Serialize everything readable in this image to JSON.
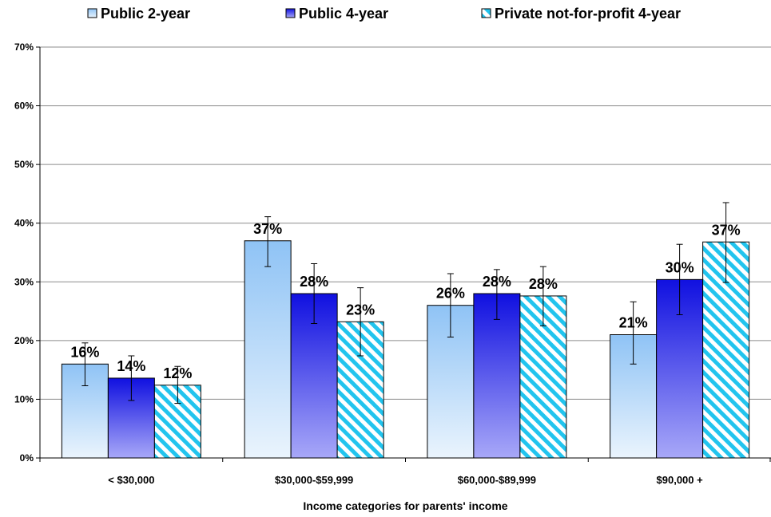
{
  "chart_data": {
    "type": "bar",
    "title": "",
    "xlabel": "Income categories for parents' income",
    "ylabel": "",
    "categories": [
      "< $30,000",
      "$30,000-$59,999",
      "$60,000-$89,999",
      "$90,000 +"
    ],
    "ylim": [
      0,
      70
    ],
    "yticks": [
      0,
      10,
      20,
      30,
      40,
      50,
      60,
      70
    ],
    "ytick_labels": [
      "0%",
      "10%",
      "20%",
      "30%",
      "40%",
      "50%",
      "60%",
      "70%"
    ],
    "grid": true,
    "legend_position": "top",
    "series": [
      {
        "name": "Public 2-year",
        "values": [
          16,
          37,
          26,
          21
        ],
        "labels": [
          "16%",
          "37%",
          "26%",
          "21%"
        ],
        "error_low": [
          12.3,
          32.6,
          20.6,
          16.0
        ],
        "error_high": [
          19.6,
          41.1,
          31.4,
          26.6
        ],
        "color_top": "#8fc3f5",
        "color_bottom": "#eaf4fd",
        "pattern": "gradient"
      },
      {
        "name": "Public 4-year",
        "values": [
          13.6,
          28,
          28,
          30.4
        ],
        "labels": [
          "14%",
          "28%",
          "28%",
          "30%"
        ],
        "error_low": [
          9.8,
          22.9,
          23.6,
          24.4
        ],
        "error_high": [
          17.4,
          33.1,
          32.1,
          36.4
        ],
        "color_top": "#1010e0",
        "color_bottom": "#a8a8f8",
        "pattern": "gradient"
      },
      {
        "name": "Private not-for-profit 4-year",
        "values": [
          12.4,
          23.2,
          27.6,
          36.8
        ],
        "labels": [
          "12%",
          "23%",
          "28%",
          "37%"
        ],
        "error_low": [
          9.3,
          17.4,
          22.5,
          29.9
        ],
        "error_high": [
          15.6,
          29.0,
          32.6,
          43.5
        ],
        "color_top": "#22c4ee",
        "color_bottom": "#ffffff",
        "pattern": "diagonal-stripes"
      }
    ]
  }
}
